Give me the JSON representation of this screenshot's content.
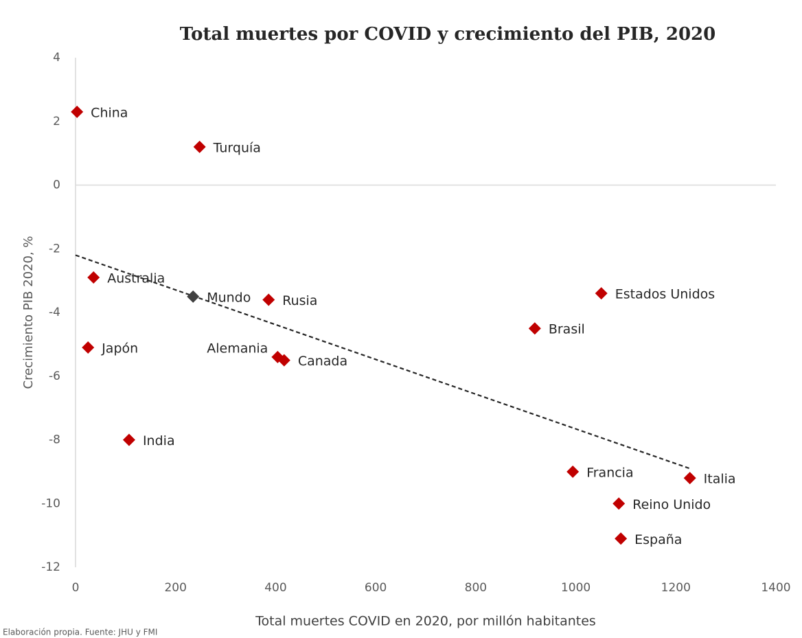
{
  "chart_data": {
    "type": "scatter",
    "title": "Total muertes por COVID y crecimiento del PIB, 2020",
    "xlabel": "Total muertes COVID en 2020, por millón habitantes",
    "ylabel": "Crecimiento PIB 2020, %",
    "source": "Elaboración propia. Fuente: JHU y FMI",
    "labels": [
      "China",
      "Turquía",
      "Australia",
      "Mundo",
      "Rusia",
      "Estados Unidos",
      "Brasil",
      "Japón",
      "Alemania",
      "Canada",
      "India",
      "Francia",
      "Italia",
      "Reino Unido",
      "España"
    ],
    "x": [
      3,
      248,
      36,
      235,
      386,
      1051,
      918,
      25,
      404,
      417,
      107,
      994,
      1228,
      1086,
      1090
    ],
    "y": [
      2.3,
      1.2,
      -2.9,
      -3.5,
      -3.6,
      -3.4,
      -4.5,
      -5.1,
      -5.4,
      -5.5,
      -8.0,
      -9.0,
      -9.2,
      -10.0,
      -11.1
    ],
    "colors": [
      "#c00000",
      "#c00000",
      "#c00000",
      "#404040",
      "#c00000",
      "#c00000",
      "#c00000",
      "#c00000",
      "#c00000",
      "#c00000",
      "#c00000",
      "#c00000",
      "#c00000",
      "#c00000",
      "#c00000"
    ],
    "trendline": {
      "x": [
        0,
        1228
      ],
      "y": [
        -2.2,
        -8.9
      ]
    },
    "xlim": [
      0,
      1400
    ],
    "ylim": [
      -12,
      4
    ],
    "xticks": [
      0,
      200,
      400,
      600,
      800,
      1000,
      1200,
      1400
    ],
    "yticks": [
      -12,
      -10,
      -8,
      -6,
      -4,
      -2,
      0,
      2,
      4
    ]
  }
}
